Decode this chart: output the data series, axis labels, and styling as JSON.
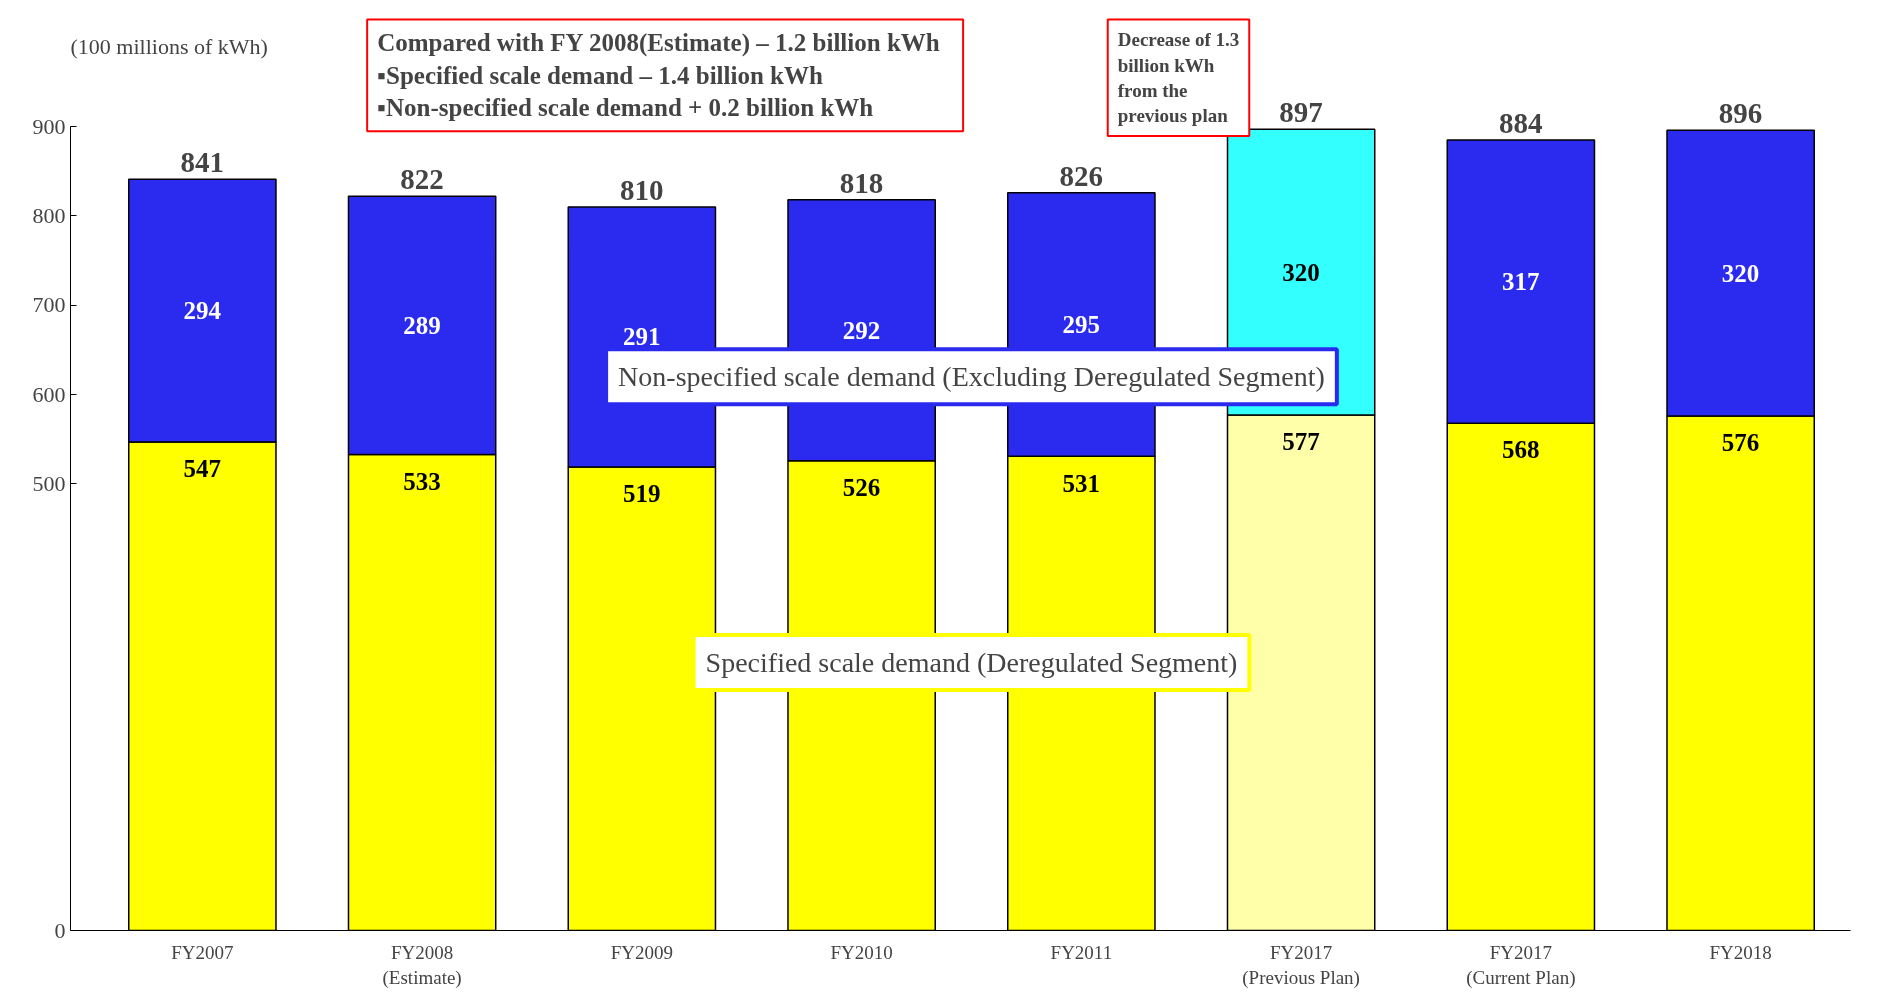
{
  "chart_data": {
    "type": "bar",
    "stacked": true,
    "ylabel": "(100 millions of kWh)",
    "categories": [
      "FY2007",
      "FY2008\n(Estimate)",
      "FY2009",
      "FY2010",
      "FY2011",
      "FY2017\n(Previous Plan)",
      "FY2017\n(Current Plan)",
      "FY2018"
    ],
    "series": [
      {
        "name": "Specified scale demand (Deregulated Segment)",
        "color": "#ffff00",
        "colors": [
          "#ffff00",
          "#ffff00",
          "#ffff00",
          "#ffff00",
          "#ffff00",
          "#ffffaa",
          "#ffff00",
          "#ffff00"
        ],
        "values": [
          547,
          533,
          519,
          526,
          531,
          577,
          568,
          576
        ]
      },
      {
        "name": "Non-specified scale demand (Excluding Deregulated Segment)",
        "color": "#2b2bf0",
        "colors": [
          "#2b2bf0",
          "#2b2bf0",
          "#2b2bf0",
          "#2b2bf0",
          "#2b2bf0",
          "#33ffff",
          "#2b2bf0",
          "#2b2bf0"
        ],
        "values": [
          294,
          289,
          291,
          292,
          295,
          320,
          317,
          320
        ]
      }
    ],
    "totals": [
      "841",
      "822",
      "810",
      "818",
      "826",
      "897",
      "884",
      "896"
    ],
    "data_labels": true,
    "ylim": [
      0,
      900
    ],
    "yticks": [
      0,
      500,
      600,
      700,
      800,
      900
    ],
    "grid": false,
    "legend": "center",
    "annotations": [
      "Compared with FY 2008(Estimate)   – 1.2 billion kWh\n▪Specified scale demand               – 1.4 billion kWh\n▪Non-specified scale demand          + 0.2 billion kWh",
      "Decrease of 1.3\nbillion kWh\nfrom the\nprevious plan"
    ]
  }
}
